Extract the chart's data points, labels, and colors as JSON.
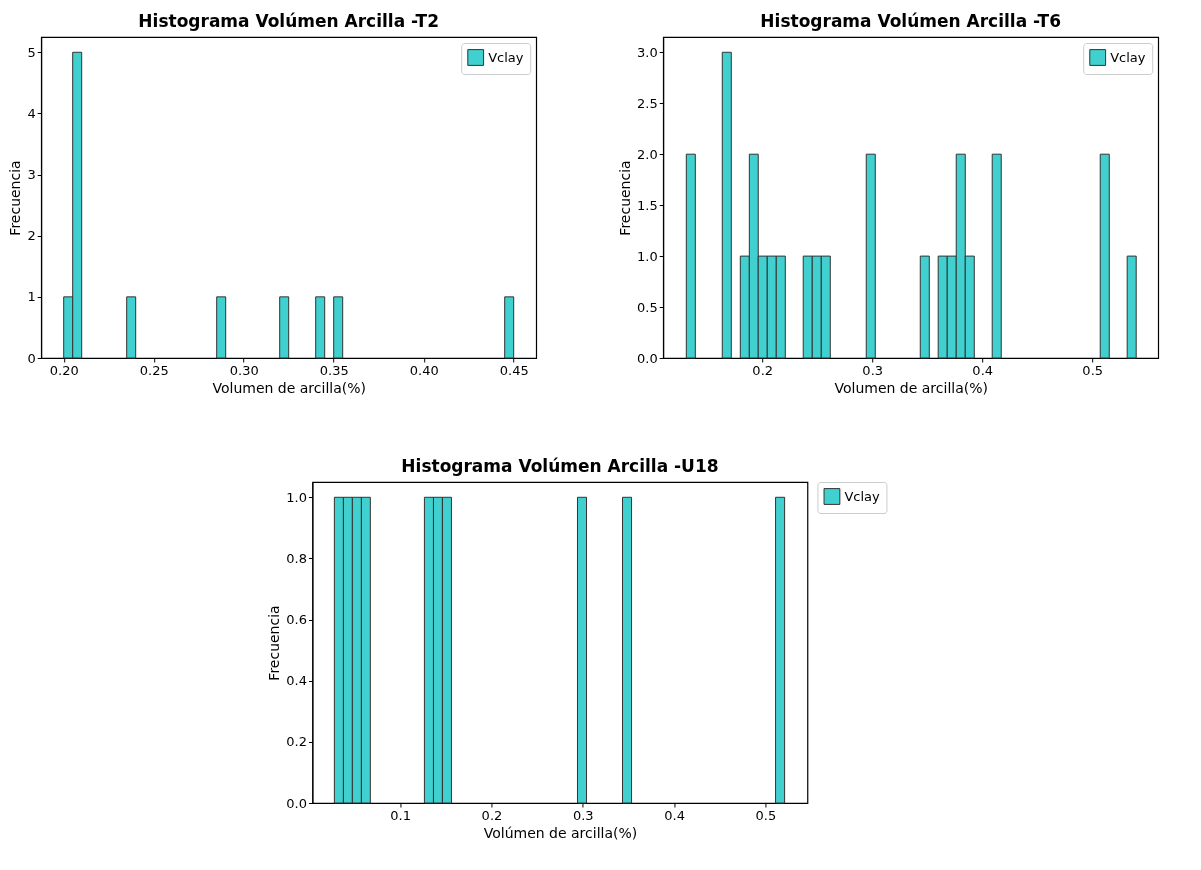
{
  "chart_data": [
    {
      "type": "histogram",
      "title": "Histograma Volúmen Arcilla -T2",
      "xlabel": "Volumen de arcilla(%)",
      "ylabel": "Frecuencia",
      "legend": "top right",
      "grid": false,
      "bins": [
        0.2,
        0.205,
        0.21,
        0.215,
        0.22,
        0.225,
        0.23,
        0.235,
        0.24,
        0.245,
        0.25,
        0.255,
        0.26,
        0.265,
        0.27,
        0.275,
        0.28,
        0.285,
        0.29,
        0.295,
        0.3,
        0.305,
        0.31,
        0.315,
        0.32,
        0.325,
        0.33,
        0.335,
        0.34,
        0.345,
        0.35,
        0.355,
        0.36,
        0.365,
        0.37,
        0.375,
        0.38,
        0.385,
        0.39,
        0.395,
        0.4,
        0.405,
        0.41,
        0.415,
        0.42,
        0.425,
        0.43,
        0.435,
        0.44,
        0.445,
        0.45
      ],
      "series": [
        {
          "name": "Vclay",
          "color": "#40d0d0",
          "values": [
            1,
            5,
            0,
            0,
            0,
            0,
            0,
            1,
            0,
            0,
            0,
            0,
            0,
            0,
            0,
            0,
            0,
            1,
            0,
            0,
            0,
            0,
            0,
            0,
            1,
            0,
            0,
            0,
            1,
            0,
            1,
            0,
            0,
            0,
            0,
            0,
            0,
            0,
            0,
            0,
            0,
            0,
            0,
            0,
            0,
            0,
            0,
            0,
            0,
            1
          ]
        }
      ],
      "xlim": [
        0.1875,
        0.4625
      ],
      "xticks": [
        {
          "value": 0.2,
          "label": "0.20"
        },
        {
          "value": 0.25,
          "label": "0.25"
        },
        {
          "value": 0.3,
          "label": "0.30"
        },
        {
          "value": 0.35,
          "label": "0.35"
        },
        {
          "value": 0.4,
          "label": "0.40"
        },
        {
          "value": 0.45,
          "label": "0.45"
        }
      ],
      "ylim": [
        0,
        5.25
      ],
      "yticks": [
        0,
        1,
        2,
        3,
        4,
        5
      ]
    },
    {
      "type": "histogram",
      "title": "Histograma Volúmen Arcilla -T6",
      "xlabel": "Volumen de arcilla(%)",
      "ylabel": "Frecuencia",
      "legend": "top right",
      "grid": false,
      "bins": [
        0.131,
        0.1392,
        0.1474,
        0.1555,
        0.1637,
        0.1719,
        0.1801,
        0.1883,
        0.1964,
        0.2046,
        0.2128,
        0.221,
        0.2292,
        0.2373,
        0.2455,
        0.2537,
        0.2619,
        0.2701,
        0.2782,
        0.2864,
        0.2946,
        0.3028,
        0.311,
        0.3191,
        0.3273,
        0.3355,
        0.3437,
        0.3519,
        0.36,
        0.3682,
        0.3764,
        0.3846,
        0.3928,
        0.4009,
        0.4091,
        0.4173,
        0.4255,
        0.4337,
        0.4418,
        0.45,
        0.4582,
        0.4664,
        0.4746,
        0.4827,
        0.4909,
        0.4991,
        0.5073,
        0.5155,
        0.5236,
        0.5318,
        0.54
      ],
      "series": [
        {
          "name": "Vclay",
          "color": "#40d0d0",
          "values": [
            2,
            0,
            0,
            0,
            3,
            0,
            1,
            2,
            1,
            1,
            1,
            0,
            0,
            1,
            1,
            1,
            0,
            0,
            0,
            0,
            2,
            0,
            0,
            0,
            0,
            0,
            1,
            0,
            1,
            1,
            2,
            1,
            0,
            0,
            2,
            0,
            0,
            0,
            0,
            0,
            0,
            0,
            0,
            0,
            0,
            0,
            2,
            0,
            0,
            1
          ]
        }
      ],
      "xlim": [
        0.11,
        0.56
      ],
      "xticks": [
        0.2,
        0.3,
        0.4,
        0.5
      ],
      "ylim": [
        0,
        3.15
      ],
      "yticks": [
        {
          "value": 0,
          "label": "0.0"
        },
        {
          "value": 0.5,
          "label": "0.5"
        },
        {
          "value": 1,
          "label": "1.0"
        },
        {
          "value": 1.5,
          "label": "1.5"
        },
        {
          "value": 2,
          "label": "2.0"
        },
        {
          "value": 2.5,
          "label": "2.5"
        },
        {
          "value": 3,
          "label": "3.0"
        }
      ]
    },
    {
      "type": "histogram",
      "title": "Histograma Volúmen Arcilla -U18",
      "xlabel": "Volúmen de arcilla(%)",
      "ylabel": "Frecuencia",
      "legend": "top right",
      "grid": false,
      "bins": [
        0.028,
        0.0379,
        0.0477,
        0.0576,
        0.0674,
        0.0773,
        0.0872,
        0.097,
        0.1069,
        0.1167,
        0.1266,
        0.1365,
        0.1463,
        0.1562,
        0.166,
        0.1759,
        0.1858,
        0.1956,
        0.2055,
        0.2153,
        0.2252,
        0.2351,
        0.2449,
        0.2548,
        0.2646,
        0.2745,
        0.2844,
        0.2942,
        0.3041,
        0.3139,
        0.3238,
        0.3337,
        0.3435,
        0.3534,
        0.3632,
        0.3731,
        0.383,
        0.3928,
        0.4027,
        0.4125,
        0.4224,
        0.4323,
        0.4421,
        0.452,
        0.4618,
        0.4717,
        0.4816,
        0.4914,
        0.5013,
        0.5111,
        0.521
      ],
      "series": [
        {
          "name": "Vclay",
          "color": "#40d0d0",
          "values": [
            1,
            1,
            1,
            1,
            0,
            0,
            0,
            0,
            0,
            0,
            1,
            1,
            1,
            0,
            0,
            0,
            0,
            0,
            0,
            0,
            0,
            0,
            0,
            0,
            0,
            0,
            0,
            1,
            0,
            0,
            0,
            0,
            1,
            0,
            0,
            0,
            0,
            0,
            0,
            0,
            0,
            0,
            0,
            0,
            0,
            0,
            0,
            0,
            0,
            1
          ]
        }
      ],
      "xlim": [
        0.004,
        0.546
      ],
      "xticks": [
        0.1,
        0.2,
        0.3,
        0.4,
        0.5
      ],
      "ylim": [
        0,
        1.05
      ],
      "yticks": [
        {
          "value": 0,
          "label": "0.0"
        },
        {
          "value": 0.2,
          "label": "0.2"
        },
        {
          "value": 0.4,
          "label": "0.4"
        },
        {
          "value": 0.6,
          "label": "0.6"
        },
        {
          "value": 0.8,
          "label": "0.8"
        },
        {
          "value": 1,
          "label": "1.0"
        }
      ]
    }
  ]
}
